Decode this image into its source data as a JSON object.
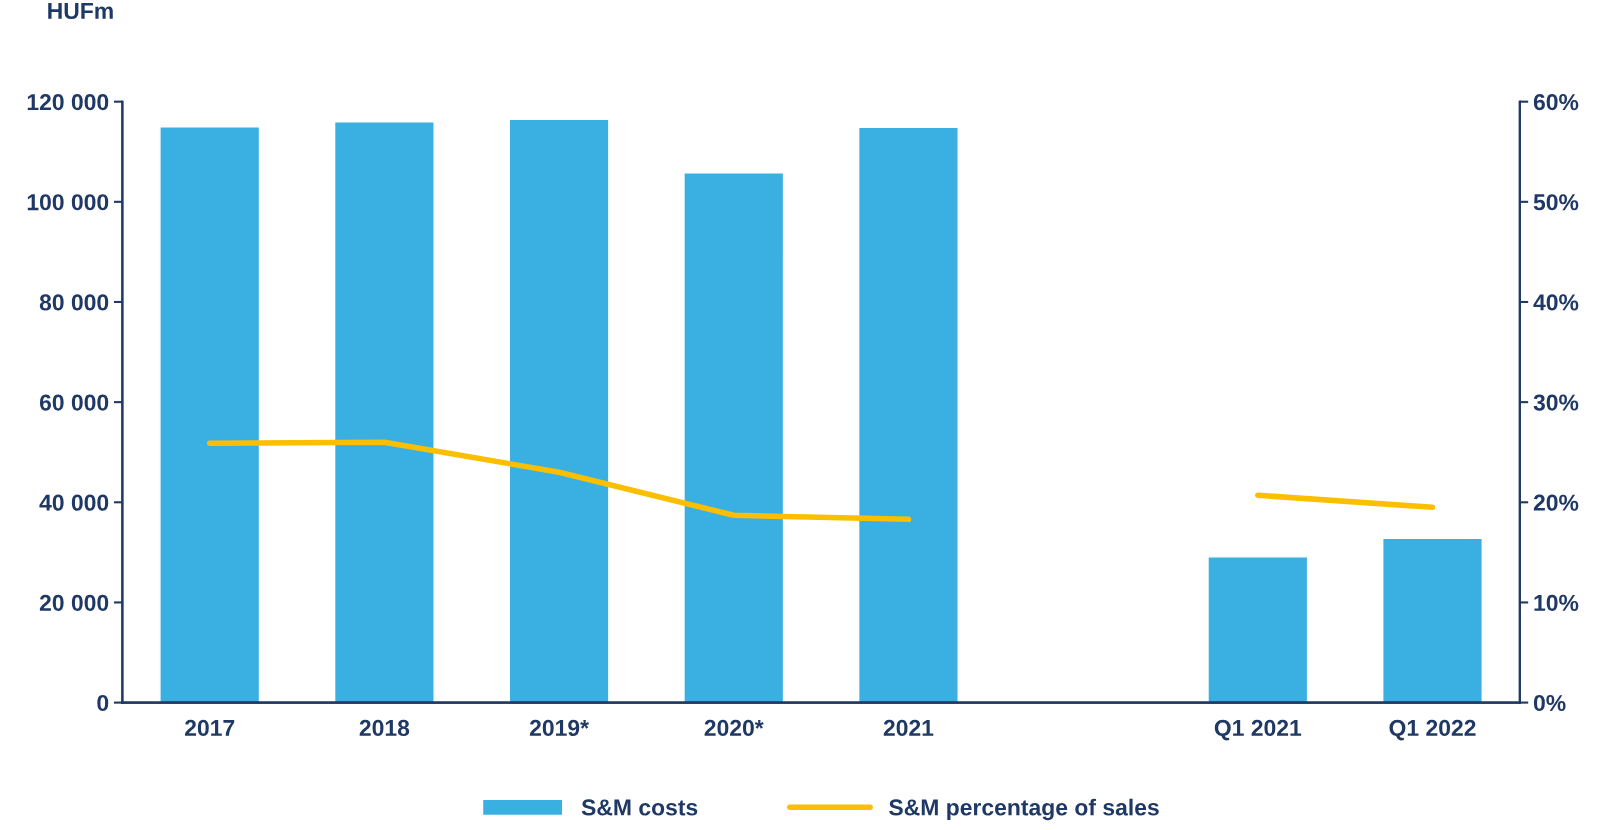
{
  "chart_data": {
    "type": "bar",
    "ylabel": "HUFm",
    "categories": [
      "2017",
      "2018",
      "2019*",
      "2020*",
      "2021",
      null,
      "Q1 2021",
      "Q1 2022"
    ],
    "series": [
      {
        "name": "S&M costs",
        "color": "#3ab0e2",
        "values": [
          115000,
          116000,
          116500,
          105800,
          114900,
          null,
          29100,
          32800
        ]
      },
      {
        "name": "S&M percentage of sales",
        "type": "line",
        "axis": "y2",
        "color": "#fbbf00",
        "values": [
          25.9,
          26.0,
          23.0,
          18.7,
          18.3,
          null,
          20.7,
          19.5
        ]
      }
    ],
    "ylim": [
      0,
      120000
    ],
    "yticks": [
      0,
      {
        "value": 20000,
        "label": "20 000"
      },
      {
        "value": 40000,
        "label": "40 000"
      },
      {
        "value": 60000,
        "label": "60 000"
      },
      {
        "value": 80000,
        "label": "80 000"
      },
      {
        "value": 100000,
        "label": "100 000"
      },
      {
        "value": 120000,
        "label": "120 000"
      }
    ],
    "y2lim": [
      0,
      60
    ],
    "y2ticks": [
      {
        "value": 0,
        "label": "0%"
      },
      {
        "value": 10,
        "label": "10%"
      },
      {
        "value": 20,
        "label": "20%"
      },
      {
        "value": 30,
        "label": "30%"
      },
      {
        "value": 40,
        "label": "40%"
      },
      {
        "value": 50,
        "label": "50%"
      },
      {
        "value": 60,
        "label": "60%"
      }
    ],
    "grid": false,
    "legend": "bottom"
  }
}
